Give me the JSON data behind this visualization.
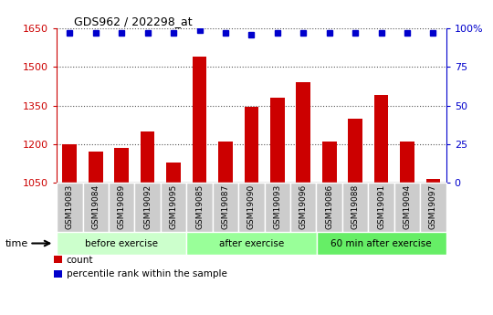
{
  "title": "GDS962 / 202298_at",
  "categories": [
    "GSM19083",
    "GSM19084",
    "GSM19089",
    "GSM19092",
    "GSM19095",
    "GSM19085",
    "GSM19087",
    "GSM19090",
    "GSM19093",
    "GSM19096",
    "GSM19086",
    "GSM19088",
    "GSM19091",
    "GSM19094",
    "GSM19097"
  ],
  "bar_values": [
    1200,
    1170,
    1185,
    1250,
    1130,
    1540,
    1210,
    1345,
    1380,
    1440,
    1210,
    1300,
    1390,
    1210,
    1065
  ],
  "percentile_values": [
    97,
    97,
    97,
    97,
    97,
    99,
    97,
    96,
    97,
    97,
    97,
    97,
    97,
    97,
    97
  ],
  "bar_color": "#cc0000",
  "percentile_color": "#0000cc",
  "ylim_left": [
    1050,
    1650
  ],
  "ylim_right": [
    0,
    100
  ],
  "yticks_left": [
    1050,
    1200,
    1350,
    1500,
    1650
  ],
  "ytick_labels_left": [
    "1050",
    "1200",
    "1350",
    "1500",
    "1650"
  ],
  "yticks_right": [
    0,
    25,
    50,
    75,
    100
  ],
  "ytick_labels_right": [
    "0",
    "25",
    "50",
    "75",
    "100%"
  ],
  "groups": [
    {
      "label": "before exercise",
      "start": 0,
      "end": 5,
      "color": "#ccffcc"
    },
    {
      "label": "after exercise",
      "start": 5,
      "end": 10,
      "color": "#99ff99"
    },
    {
      "label": "60 min after exercise",
      "start": 10,
      "end": 15,
      "color": "#66ee66"
    }
  ],
  "legend_count_label": "count",
  "legend_percentile_label": "percentile rank within the sample",
  "time_label": "time",
  "plot_bg_color": "#ffffff",
  "tick_box_color": "#cccccc",
  "dotted_line_color": "#555555"
}
